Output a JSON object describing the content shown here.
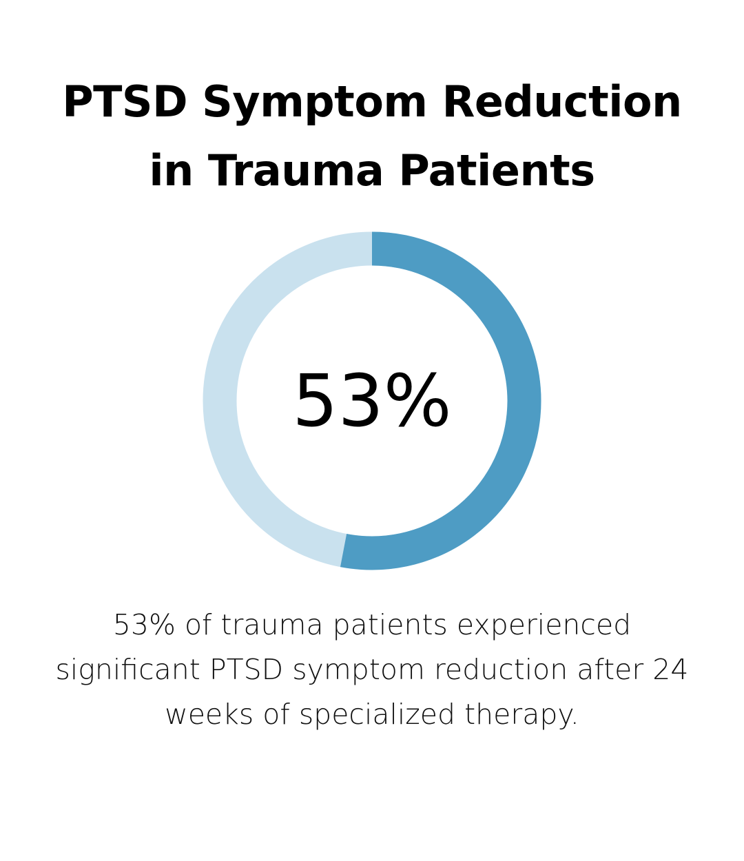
{
  "title_lines": [
    "PTSD Symptom Reduction",
    "in Trauma Patients"
  ],
  "chart_data": {
    "type": "pie",
    "title": "PTSD Symptom Reduction in Trauma Patients",
    "style": "donut",
    "values": [
      53,
      47
    ],
    "center_label": "53%",
    "colors": [
      "#4e9cc4",
      "#c9e1ee"
    ]
  },
  "caption_lines": [
    "53% of trauma patients experienced",
    "significant PTSD symptom reduction after 24",
    "weeks of specialized therapy."
  ]
}
